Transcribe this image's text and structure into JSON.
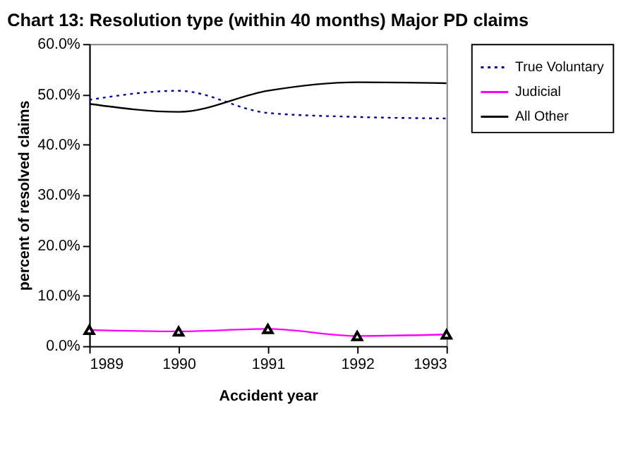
{
  "chart_data": {
    "type": "line",
    "title": "Chart 13: Resolution type (within 40 months) Major PD claims",
    "xlabel": "Accident year",
    "ylabel": "percent of resolved claims",
    "x": [
      1989,
      1990,
      1991,
      1992,
      1993
    ],
    "xlim": [
      1989,
      1993
    ],
    "xticks": [
      1989,
      1990,
      1991,
      1992,
      1993
    ],
    "ylim": [
      0,
      60
    ],
    "yticks": [
      {
        "value": 0,
        "label": "0.0%"
      },
      {
        "value": 10,
        "label": "10.0%"
      },
      {
        "value": 20,
        "label": "20.0%"
      },
      {
        "value": 30,
        "label": "30.0%"
      },
      {
        "value": 40,
        "label": "40.0%"
      },
      {
        "value": 50,
        "label": "50.0%"
      },
      {
        "value": 60,
        "label": "60.0%"
      }
    ],
    "grid": false,
    "legend": "right",
    "series": [
      {
        "name": "True Voluntary",
        "color": "#000080",
        "line_style": "dotted",
        "values": [
          48.9,
          50.7,
          46.3,
          45.5,
          45.2
        ]
      },
      {
        "name": "Judicial",
        "color": "#ff00ff",
        "marker": "triangle",
        "values": [
          3.2,
          2.9,
          3.4,
          2.0,
          2.3
        ]
      },
      {
        "name": "All Other",
        "color": "#000000",
        "line_style": "solid",
        "values": [
          48.1,
          46.5,
          50.7,
          52.4,
          52.2
        ]
      }
    ]
  }
}
